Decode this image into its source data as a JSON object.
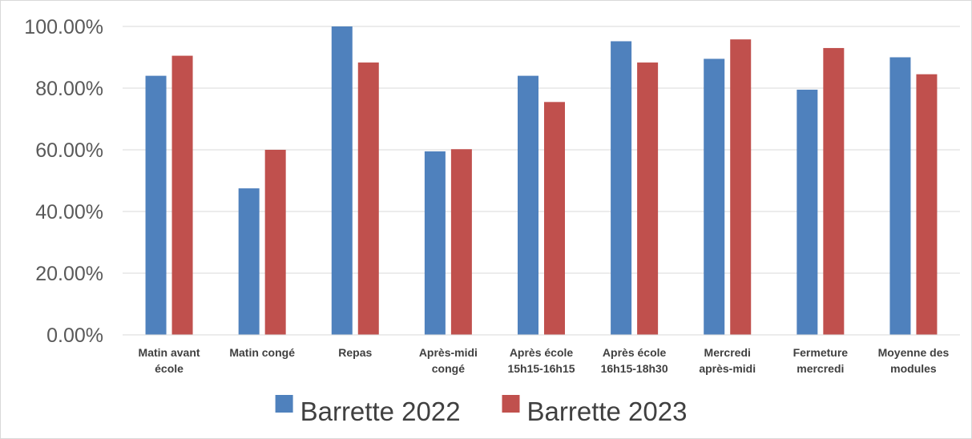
{
  "chart_data": {
    "type": "bar",
    "title": "",
    "xlabel": "",
    "ylabel": "",
    "ylim": [
      0,
      1
    ],
    "yticks": [
      "0.00%",
      "20.00%",
      "40.00%",
      "60.00%",
      "80.00%",
      "100.00%"
    ],
    "grid": true,
    "legend_position": "bottom",
    "categories": [
      [
        "Matin avant",
        "école"
      ],
      [
        "Matin congé"
      ],
      [
        "Repas"
      ],
      [
        "Après-midi",
        "congé"
      ],
      [
        "Après école",
        "15h15-16h15"
      ],
      [
        "Après école",
        "16h15-18h30"
      ],
      [
        "Mercredi",
        "après-midi"
      ],
      [
        "Fermeture",
        "mercredi"
      ],
      [
        "Moyenne des",
        "modules"
      ]
    ],
    "series": [
      {
        "name": "Barrette 2022",
        "color": "#4f81bd",
        "values": [
          0.84,
          0.475,
          1.0,
          0.595,
          0.84,
          0.952,
          0.895,
          0.795,
          0.9
        ]
      },
      {
        "name": "Barrette 2023",
        "color": "#c0504d",
        "values": [
          0.905,
          0.6,
          0.883,
          0.602,
          0.755,
          0.883,
          0.958,
          0.93,
          0.845
        ]
      }
    ]
  }
}
